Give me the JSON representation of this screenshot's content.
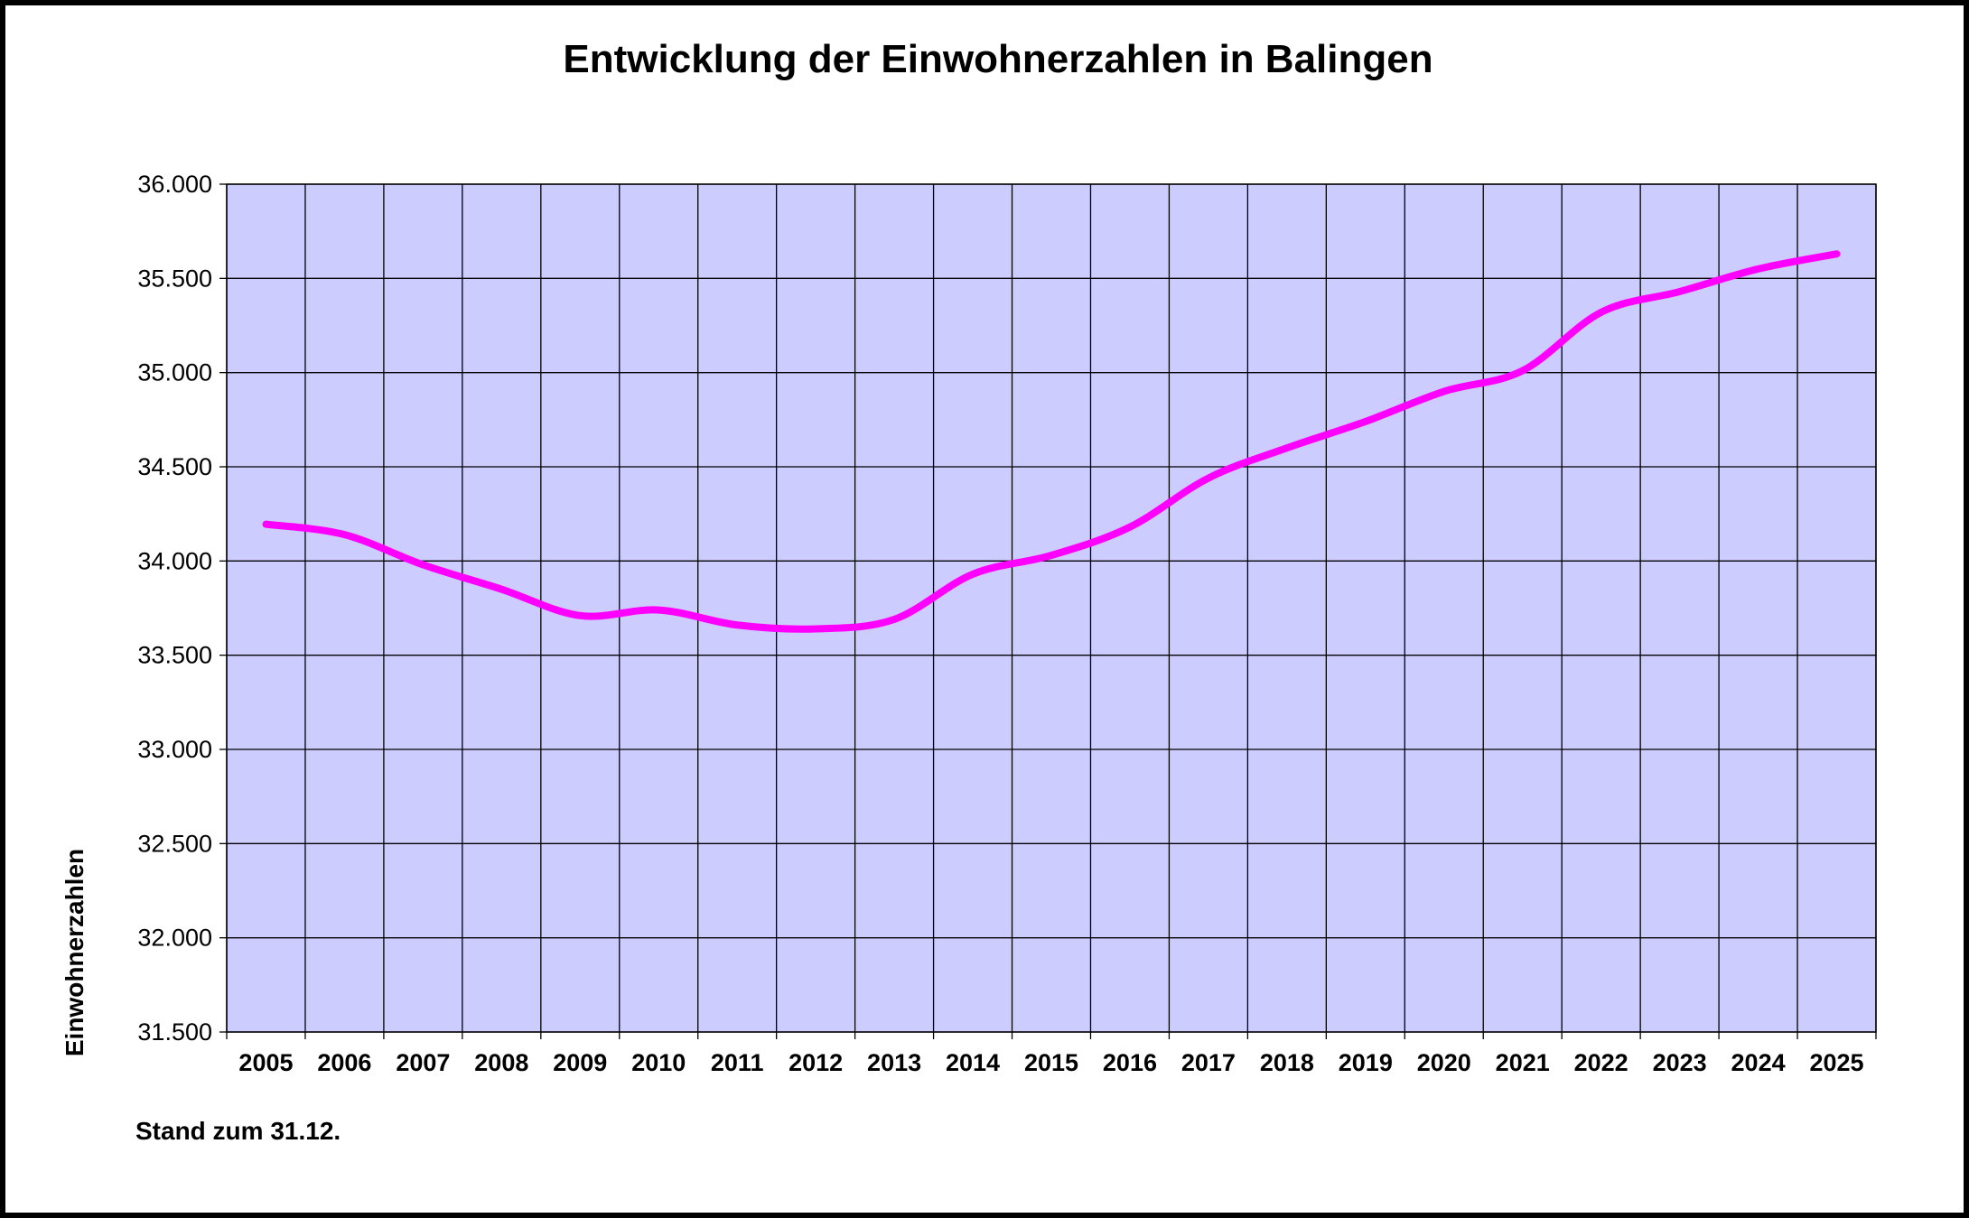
{
  "chart_data": {
    "type": "line",
    "title": "Entwicklung der Einwohnerzahlen in Balingen",
    "xlabel": "",
    "ylabel": "Einwohnerzahlen",
    "note": "Stand zum 31.12.",
    "categories": [
      "2005",
      "2006",
      "2007",
      "2008",
      "2009",
      "2010",
      "2011",
      "2012",
      "2013",
      "2014",
      "2015",
      "2016",
      "2017",
      "2018",
      "2019",
      "2020",
      "2021",
      "2022",
      "2023",
      "2024",
      "2025"
    ],
    "y_ticks": [
      31500,
      32000,
      32500,
      33000,
      33500,
      34000,
      34500,
      35000,
      35500,
      36000
    ],
    "y_tick_labels": [
      "31.500",
      "32.000",
      "32.500",
      "33.000",
      "33.500",
      "34.000",
      "34.500",
      "35.000",
      "35.500",
      "36.000"
    ],
    "ylim": [
      31500,
      36000
    ],
    "grid": true,
    "series": [
      {
        "values": [
          34195,
          34140,
          33980,
          33850,
          33710,
          33740,
          33660,
          33640,
          33690,
          33930,
          34030,
          34180,
          34440,
          34600,
          34740,
          34900,
          35010,
          35320,
          35430,
          35550,
          35630
        ],
        "color": "#ff00ff"
      }
    ],
    "plot_background": "#ccccff",
    "grid_color": "#000000"
  }
}
